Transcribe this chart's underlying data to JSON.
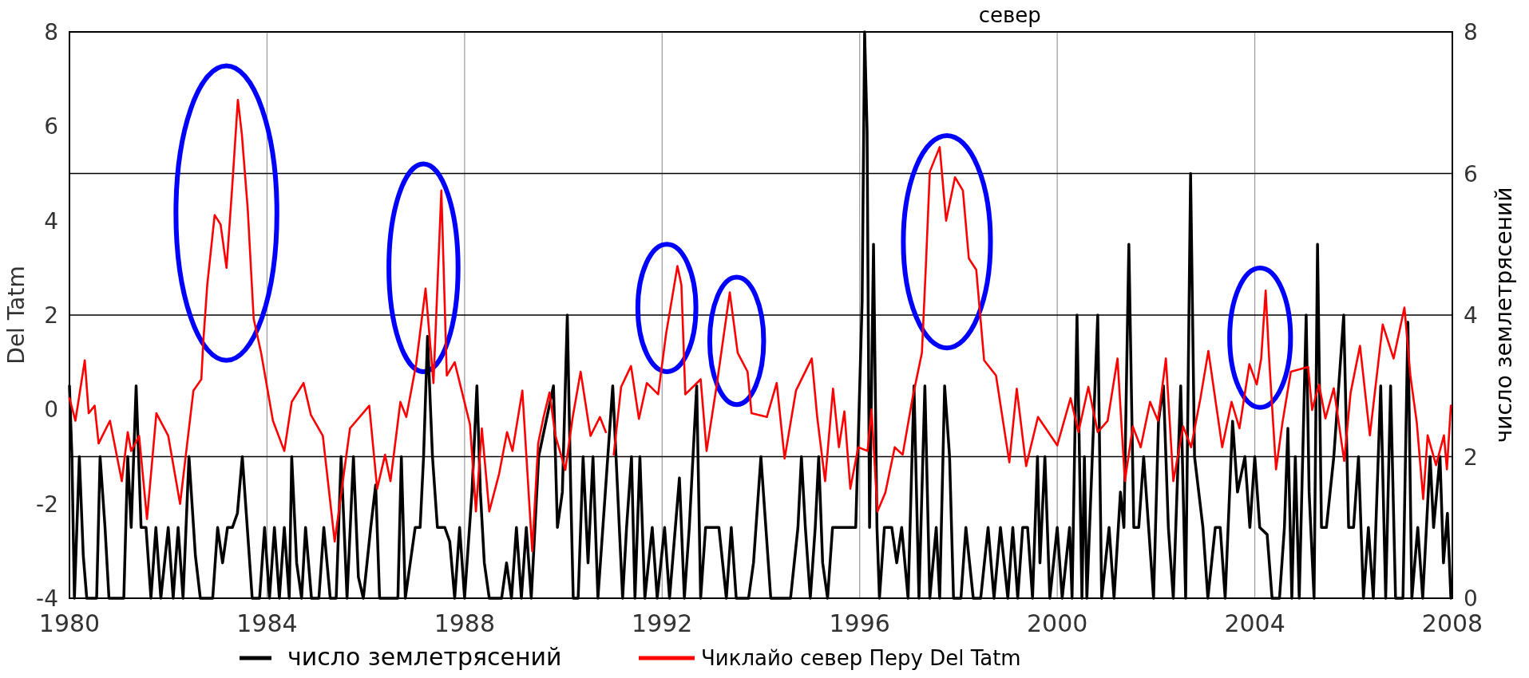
{
  "chart_data": {
    "type": "line",
    "title": "север",
    "ylabel": "Del Tatm",
    "y2label": "число землетрясений",
    "xlim": [
      1980,
      2008
    ],
    "xticks": [
      1980,
      1984,
      1988,
      1992,
      1996,
      2000,
      2004,
      2008
    ],
    "ylim": [
      -4,
      8
    ],
    "yticks": [
      -4,
      -2,
      0,
      2,
      4,
      6,
      8
    ],
    "y2lim": [
      0,
      8
    ],
    "y2ticks": [
      0,
      2,
      4,
      6,
      8
    ],
    "grid": true,
    "legend": "bottom",
    "series": [
      {
        "name": "число землетрясений",
        "color": "#000000",
        "axis": "y2",
        "x": [
          1980.0,
          1980.05,
          1980.1,
          1980.2,
          1980.28,
          1980.35,
          1980.55,
          1980.62,
          1980.72,
          1980.8,
          1980.95,
          1981.1,
          1981.18,
          1981.25,
          1981.35,
          1981.45,
          1981.55,
          1981.65,
          1981.75,
          1981.85,
          1982.0,
          1982.1,
          1982.2,
          1982.3,
          1982.42,
          1982.55,
          1982.65,
          1982.9,
          1983.0,
          1983.1,
          1983.2,
          1983.3,
          1983.4,
          1983.5,
          1983.6,
          1983.7,
          1983.85,
          1983.95,
          1984.05,
          1984.15,
          1984.25,
          1984.35,
          1984.45,
          1984.5,
          1984.6,
          1984.7,
          1984.78,
          1984.9,
          1985.05,
          1985.15,
          1985.28,
          1985.4,
          1985.5,
          1985.62,
          1985.75,
          1985.85,
          1985.95,
          1986.1,
          1986.2,
          1986.28,
          1986.4,
          1986.55,
          1986.65,
          1986.72,
          1986.8,
          1986.9,
          1987.0,
          1987.1,
          1987.17,
          1987.25,
          1987.35,
          1987.45,
          1987.6,
          1987.7,
          1987.8,
          1987.9,
          1988.0,
          1988.15,
          1988.25,
          1988.32,
          1988.4,
          1988.5,
          1988.75,
          1988.85,
          1988.95,
          1989.05,
          1989.15,
          1989.25,
          1989.35,
          1989.5,
          1989.8,
          1989.88,
          1989.98,
          1990.08,
          1990.15,
          1990.2,
          1990.3,
          1990.4,
          1990.5,
          1990.6,
          1990.7,
          1990.85,
          1991.0,
          1991.1,
          1991.2,
          1991.28,
          1991.38,
          1991.45,
          1991.55,
          1991.65,
          1991.8,
          1991.9,
          1992.05,
          1992.15,
          1992.35,
          1992.45,
          1992.55,
          1992.7,
          1992.78,
          1992.88,
          1993.0,
          1993.15,
          1993.3,
          1993.4,
          1993.5,
          1993.6,
          1993.75,
          1993.85,
          1994.0,
          1994.1,
          1994.2,
          1994.4,
          1994.6,
          1994.75,
          1994.82,
          1994.9,
          1995.0,
          1995.1,
          1995.17,
          1995.25,
          1995.35,
          1995.45,
          1995.6,
          1995.75,
          1995.92,
          1996.05,
          1996.1,
          1996.15,
          1996.2,
          1996.28,
          1996.35,
          1996.4,
          1996.5,
          1996.65,
          1996.75,
          1996.85,
          1996.98,
          1997.1,
          1997.2,
          1997.32,
          1997.42,
          1997.55,
          1997.62,
          1997.72,
          1997.82,
          1997.9,
          1998.05,
          1998.15,
          1998.3,
          1998.45,
          1998.6,
          1998.72,
          1998.85,
          1999.0,
          1999.1,
          1999.2,
          1999.3,
          1999.4,
          1999.5,
          1999.6,
          1999.65,
          1999.75,
          1999.85,
          2000.0,
          2000.1,
          2000.25,
          2000.3,
          2000.4,
          2000.5,
          2000.55,
          2000.6,
          2000.82,
          2000.9,
          2001.05,
          2001.15,
          2001.28,
          2001.35,
          2001.45,
          2001.55,
          2001.65,
          2001.75,
          2001.85,
          2001.95,
          2002.05,
          2002.15,
          2002.25,
          2002.35,
          2002.5,
          2002.6,
          2002.7,
          2002.78,
          2002.95,
          2003.05,
          2003.2,
          2003.3,
          2003.4,
          2003.55,
          2003.65,
          2003.8,
          2003.9,
          2004.0,
          2004.1,
          2004.25,
          2004.35,
          2004.5,
          2004.6,
          2004.67,
          2004.75,
          2004.82,
          2004.9,
          2005.04,
          2005.1,
          2005.2,
          2005.27,
          2005.35,
          2005.45,
          2005.6,
          2005.8,
          2005.9,
          2006.0,
          2006.1,
          2006.2,
          2006.3,
          2006.4,
          2006.55,
          2006.65,
          2006.75,
          2006.85,
          2007.0,
          2007.1,
          2007.18,
          2007.3,
          2007.4,
          2007.55,
          2007.62,
          2007.75,
          2007.82,
          2007.9,
          2007.97
        ],
        "values": [
          3,
          2,
          0,
          2,
          0.6,
          0,
          0,
          2,
          1,
          0,
          0,
          0,
          2,
          1,
          3,
          1,
          1,
          0,
          1,
          0,
          1,
          0,
          1,
          0,
          2,
          0.6,
          0,
          0,
          1,
          0.5,
          1,
          1,
          1.2,
          2,
          1,
          0,
          0,
          1,
          0,
          1,
          0,
          1,
          0,
          2,
          0.5,
          0,
          1,
          0,
          0,
          1,
          0,
          0,
          2,
          0,
          2,
          0.3,
          0,
          1,
          1.6,
          0,
          0,
          0,
          0,
          2,
          0,
          0.5,
          1,
          1,
          2,
          3.7,
          2,
          1,
          1,
          0.8,
          0,
          1,
          0,
          1.5,
          3,
          1.5,
          0.5,
          0,
          0,
          0.5,
          0,
          1,
          0,
          1,
          0,
          2,
          3,
          1,
          1.5,
          4,
          1.5,
          0,
          0,
          2,
          0.5,
          2,
          0,
          1.5,
          3,
          1.5,
          0,
          1,
          2,
          0,
          2,
          0,
          1,
          0,
          1,
          0,
          1.7,
          0,
          1,
          3,
          0,
          1,
          1,
          1,
          0,
          1,
          0,
          0,
          0,
          0.5,
          2,
          1,
          0,
          0,
          0,
          1,
          2,
          1,
          0,
          1,
          2,
          0.5,
          0,
          1,
          1,
          1,
          1,
          4.2,
          8,
          6.6,
          1,
          5,
          1,
          0,
          1,
          1,
          0.5,
          1,
          0,
          3,
          0,
          3,
          0,
          1,
          0,
          3,
          2,
          0,
          0,
          1,
          0,
          0,
          1,
          0,
          1,
          0,
          1,
          0,
          1,
          1,
          0,
          2,
          0.5,
          2,
          0,
          1,
          0,
          1,
          0,
          4,
          0,
          2,
          0,
          4,
          0,
          1,
          0,
          1.5,
          1,
          5,
          1,
          1,
          2,
          1,
          0,
          2.5,
          3,
          1,
          0,
          3,
          0,
          6,
          2,
          1,
          0,
          1,
          1,
          0,
          2.5,
          1.5,
          2,
          1,
          2,
          1,
          0.9,
          0,
          0,
          1,
          2.4,
          0,
          2,
          0,
          4,
          1.5,
          0,
          5,
          1,
          1,
          2,
          4,
          1,
          1,
          2,
          0,
          1,
          0,
          3,
          0,
          3,
          0,
          0,
          3.9,
          0,
          1,
          0,
          2,
          1,
          2,
          0.5,
          1.2,
          0
        ]
      },
      {
        "name": "Чиклайо север Перу Del Tatm",
        "color": "#ff0000",
        "x": [
          1980.0,
          1980.12,
          1980.31,
          1980.39,
          1980.51,
          1980.59,
          1980.82,
          1981.06,
          1981.18,
          1981.25,
          1981.41,
          1981.57,
          1981.76,
          1982.0,
          1982.24,
          1982.51,
          1982.67,
          1982.71,
          1982.79,
          1982.94,
          1983.06,
          1983.18,
          1983.29,
          1983.41,
          1983.49,
          1983.61,
          1983.73,
          1983.88,
          1984.12,
          1984.35,
          1984.5,
          1984.74,
          1984.89,
          1985.13,
          1985.37,
          1985.68,
          1986.07,
          1986.23,
          1986.39,
          1986.5,
          1986.7,
          1986.82,
          1987.02,
          1987.21,
          1987.37,
          1987.53,
          1987.64,
          1987.8,
          1988.11,
          1988.23,
          1988.35,
          1988.5,
          1988.7,
          1988.86,
          1988.97,
          1989.17,
          1989.37,
          1989.49,
          1989.6,
          1989.72,
          1989.84,
          1990.04,
          1990.19,
          1990.35,
          1990.55,
          1990.74,
          1990.86,
          1990.94,
          1991.02,
          1991.17,
          1991.37,
          1991.53,
          1991.69,
          1991.92,
          1992.08,
          1992.31,
          1992.39,
          1992.47,
          1992.78,
          1992.9,
          1993.1,
          1993.37,
          1993.53,
          1993.73,
          1993.81,
          1994.12,
          1994.32,
          1994.48,
          1994.71,
          1995.03,
          1995.14,
          1995.3,
          1995.46,
          1995.58,
          1995.69,
          1995.81,
          1995.97,
          1996.16,
          1996.24,
          1996.36,
          1996.52,
          1996.71,
          1996.87,
          1997.07,
          1997.26,
          1997.34,
          1997.42,
          1997.62,
          1997.75,
          1997.93,
          1998.09,
          1998.21,
          1998.36,
          1998.52,
          1998.76,
          1999.03,
          1999.18,
          1999.37,
          1999.61,
          2000.0,
          2000.27,
          2000.43,
          2000.63,
          2000.82,
          2001.02,
          2001.22,
          2001.37,
          2001.53,
          2001.69,
          2001.88,
          2002.04,
          2002.2,
          2002.35,
          2002.55,
          2002.71,
          2002.9,
          2003.06,
          2003.34,
          2003.53,
          2003.69,
          2003.89,
          2004.04,
          2004.13,
          2004.22,
          2004.29,
          2004.43,
          2004.56,
          2004.73,
          2005.08,
          2005.16,
          2005.3,
          2005.43,
          2005.6,
          2005.81,
          2005.94,
          2006.13,
          2006.33,
          2006.59,
          2006.81,
          2007.03,
          2007.15,
          2007.28,
          2007.41,
          2007.5,
          2007.67,
          2007.83,
          2007.89,
          2007.97
        ],
        "values": [
          0.24,
          -0.24,
          1.04,
          -0.08,
          0.08,
          -0.72,
          -0.24,
          -1.52,
          -0.48,
          -0.88,
          -0.56,
          -2.32,
          -0.08,
          -0.56,
          -2.0,
          0.4,
          0.64,
          1.44,
          2.64,
          4.12,
          3.92,
          3.0,
          4.64,
          6.56,
          5.84,
          4.24,
          1.92,
          1.2,
          -0.24,
          -0.88,
          0.16,
          0.56,
          -0.12,
          -0.56,
          -2.8,
          -0.4,
          0.08,
          -1.68,
          -0.96,
          -1.52,
          0.16,
          -0.16,
          0.96,
          2.56,
          0.56,
          4.64,
          0.72,
          1.0,
          -0.32,
          -2.16,
          -0.4,
          -2.16,
          -1.36,
          -0.48,
          -0.88,
          0.4,
          -3.0,
          -0.72,
          -0.16,
          0.36,
          -0.56,
          -1.28,
          -0.16,
          0.8,
          -0.56,
          -0.16,
          -0.48,
          null,
          -0.96,
          0.48,
          0.92,
          -0.2,
          0.56,
          0.32,
          1.6,
          3.04,
          2.64,
          0.32,
          0.64,
          -0.88,
          0.48,
          2.48,
          1.2,
          0.8,
          -0.08,
          -0.16,
          0.56,
          -1.04,
          0.4,
          1.08,
          -0.16,
          -1.52,
          0.44,
          -0.8,
          -0.04,
          -1.68,
          -0.8,
          -0.88,
          0,
          -2.16,
          -1.76,
          -0.8,
          -0.96,
          0.24,
          1.2,
          3.04,
          5.04,
          5.56,
          4.0,
          4.92,
          4.64,
          3.2,
          2.96,
          1.04,
          0.72,
          -1.12,
          0.44,
          -1.2,
          -0.16,
          -0.76,
          0.24,
          -0.48,
          0.48,
          -0.48,
          -0.24,
          1.08,
          -1.52,
          -0.36,
          -0.8,
          0.16,
          -0.24,
          1.08,
          -1.52,
          -0.36,
          -0.8,
          0.24,
          1.24,
          -0.8,
          0.16,
          -0.4,
          0.96,
          0.53,
          1.08,
          2.52,
          1.08,
          -1.27,
          -0.28,
          0.8,
          0.9,
          -0.01,
          0.53,
          -0.19,
          0.45,
          -1.09,
          0.35,
          1.35,
          -0.55,
          1.8,
          1.08,
          2.16,
          0.72,
          -0.28,
          -1.9,
          -0.55,
          -1.18,
          -0.55,
          -1.27,
          0.08
        ]
      }
    ]
  }
}
